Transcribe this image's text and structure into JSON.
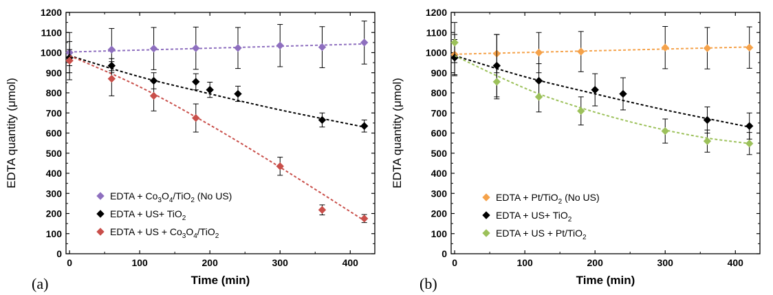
{
  "chart_data": [
    {
      "type": "scatter",
      "panel_label": "(a)",
      "xlabel": "Time (min)",
      "ylabel": "EDTA quantity (μmol)",
      "xlim": [
        -5,
        435
      ],
      "ylim": [
        0,
        1200
      ],
      "xticks": [
        0,
        100,
        200,
        300,
        400
      ],
      "yticks": [
        0,
        100,
        200,
        300,
        400,
        500,
        600,
        700,
        800,
        900,
        1000,
        1100,
        1200
      ],
      "grid": false,
      "legend_position": "bottom-left",
      "series": [
        {
          "name_parts": [
            [
              "EDTA + Co",
              ""
            ],
            [
              "3",
              "sub"
            ],
            [
              "O",
              ""
            ],
            [
              "4",
              "sub"
            ],
            [
              "/TiO",
              ""
            ],
            [
              "2",
              "sub"
            ],
            [
              " (No US)",
              ""
            ]
          ],
          "color": "#8e6fbf",
          "x": [
            0,
            60,
            120,
            180,
            240,
            300,
            360,
            420
          ],
          "y": [
            1000,
            1015,
            1020,
            1022,
            1023,
            1035,
            1027,
            1050
          ],
          "err": [
            100,
            105,
            105,
            105,
            102,
            105,
            102,
            107
          ],
          "fit": [
            [
              0,
              1003
            ],
            [
              420,
              1043
            ]
          ]
        },
        {
          "name_parts": [
            [
              "EDTA + US+ TiO",
              ""
            ],
            [
              "2",
              "sub"
            ]
          ],
          "color": "#000000",
          "x": [
            0,
            60,
            120,
            180,
            200,
            240,
            360,
            420
          ],
          "y": [
            975,
            935,
            860,
            855,
            815,
            795,
            665,
            635
          ],
          "err": [
            40,
            35,
            40,
            40,
            38,
            38,
            35,
            30
          ],
          "fit": [
            [
              0,
              985
            ],
            [
              100,
              880
            ],
            [
              200,
              795
            ],
            [
              300,
              715
            ],
            [
              420,
              630
            ]
          ]
        },
        {
          "name_parts": [
            [
              "EDTA + US + Co",
              ""
            ],
            [
              "3",
              "sub"
            ],
            [
              "O",
              ""
            ],
            [
              "4",
              "sub"
            ],
            [
              "/TiO",
              ""
            ],
            [
              "2",
              "sub"
            ]
          ],
          "color": "#c94f4a",
          "x": [
            0,
            60,
            120,
            180,
            300,
            360,
            420
          ],
          "y": [
            960,
            870,
            785,
            675,
            435,
            218,
            175
          ],
          "err": [
            95,
            85,
            75,
            70,
            45,
            25,
            20
          ],
          "fit": [
            [
              0,
              985
            ],
            [
              100,
              830
            ],
            [
              200,
              640
            ],
            [
              300,
              430
            ],
            [
              420,
              165
            ]
          ]
        }
      ]
    },
    {
      "type": "scatter",
      "panel_label": "(b)",
      "xlabel": "Time (min)",
      "ylabel": "EDTA quantity (μmol)",
      "xlim": [
        -5,
        435
      ],
      "ylim": [
        0,
        1200
      ],
      "xticks": [
        0,
        100,
        200,
        300,
        400
      ],
      "yticks": [
        0,
        100,
        200,
        300,
        400,
        500,
        600,
        700,
        800,
        900,
        1000,
        1100,
        1200
      ],
      "grid": false,
      "legend_position": "bottom-left",
      "series": [
        {
          "name_parts": [
            [
              "EDTA + Pt/TiO",
              ""
            ],
            [
              "2",
              "sub"
            ],
            [
              " (No US)",
              ""
            ]
          ],
          "color": "#f5a24a",
          "x": [
            0,
            60,
            120,
            180,
            300,
            360,
            420
          ],
          "y": [
            990,
            995,
            1000,
            1005,
            1025,
            1022,
            1025
          ],
          "err": [
            100,
            95,
            100,
            100,
            105,
            103,
            103
          ],
          "fit": [
            [
              0,
              992
            ],
            [
              420,
              1028
            ]
          ]
        },
        {
          "name_parts": [
            [
              "EDTA + US+ TiO",
              ""
            ],
            [
              "2",
              "sub"
            ]
          ],
          "color": "#000000",
          "x": [
            0,
            60,
            120,
            200,
            240,
            360,
            420
          ],
          "y": [
            975,
            935,
            860,
            815,
            795,
            665,
            635
          ],
          "err": [
            90,
            155,
            85,
            80,
            80,
            65,
            65
          ],
          "fit": [
            [
              0,
              985
            ],
            [
              100,
              880
            ],
            [
              200,
              795
            ],
            [
              300,
              715
            ],
            [
              420,
              630
            ]
          ]
        },
        {
          "name_parts": [
            [
              "EDTA + US + Pt/TiO",
              ""
            ],
            [
              "2",
              "sub"
            ]
          ],
          "color": "#9cc15a",
          "x": [
            0,
            60,
            120,
            180,
            300,
            360,
            420
          ],
          "y": [
            1050,
            855,
            780,
            710,
            610,
            560,
            548
          ],
          "err": [
            100,
            85,
            75,
            70,
            60,
            55,
            55
          ],
          "fit": [
            [
              0,
              985
            ],
            [
              60,
              885
            ],
            [
              120,
              795
            ],
            [
              180,
              725
            ],
            [
              240,
              665
            ],
            [
              300,
              615
            ],
            [
              360,
              575
            ],
            [
              420,
              548
            ]
          ]
        }
      ]
    }
  ]
}
